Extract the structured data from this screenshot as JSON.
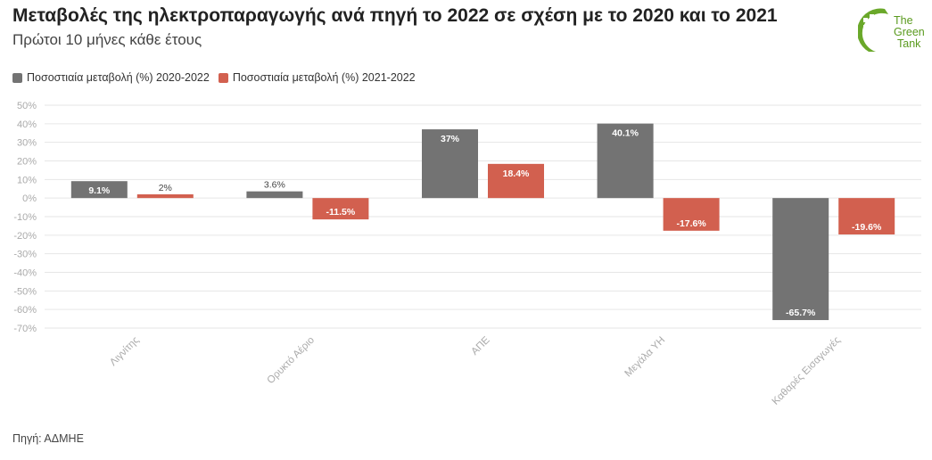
{
  "header": {
    "title": "Μεταβολές της ηλεκτροπαραγωγής ανά πηγή το 2022 σε σχέση με το 2020 και το 2021",
    "subtitle": "Πρώτοι 10 μήνες κάθε έτους"
  },
  "logo": {
    "line1": "The",
    "line2": "Green",
    "line3": "Tank",
    "color": "#5a9a1e"
  },
  "source": "Πηγή: ΑΔΜΗΕ",
  "colors": {
    "series1": "#737373",
    "series2": "#d2604f",
    "grid": "#e6e6e6"
  },
  "chart_data": {
    "type": "bar",
    "title": "Μεταβολές της ηλεκτροπαραγωγής ανά πηγή το 2022 σε σχέση με το 2020 και το 2021",
    "xlabel": "",
    "ylabel": "",
    "categories": [
      "Λιγνίτης",
      "Ορυκτό Αέριο",
      "ΑΠΕ",
      "Μεγάλα ΥΗ",
      "Καθαρές Εισαγωγές"
    ],
    "series": [
      {
        "name": "Ποσοστιαία μεταβολή (%) 2020-2022",
        "values": [
          9.1,
          3.6,
          37,
          40.1,
          -65.7
        ],
        "labels": [
          "9.1%",
          "3.6%",
          "37%",
          "40.1%",
          "-65.7%"
        ]
      },
      {
        "name": "Ποσοστιαία μεταβολή (%) 2021-2022",
        "values": [
          2,
          -11.5,
          18.4,
          -17.6,
          -19.6
        ],
        "labels": [
          "2%",
          "-11.5%",
          "18.4%",
          "-17.6%",
          "-19.6%"
        ]
      }
    ],
    "ylim": [
      -70,
      50
    ],
    "yticks": [
      "50%",
      "40%",
      "30%",
      "20%",
      "10%",
      "0%",
      "-10%",
      "-20%",
      "-30%",
      "-40%",
      "-50%",
      "-60%",
      "-70%"
    ],
    "ytick_values": [
      50,
      40,
      30,
      20,
      10,
      0,
      -10,
      -20,
      -30,
      -40,
      -50,
      -60,
      -70
    ],
    "grid": true,
    "legend": "top-left"
  }
}
